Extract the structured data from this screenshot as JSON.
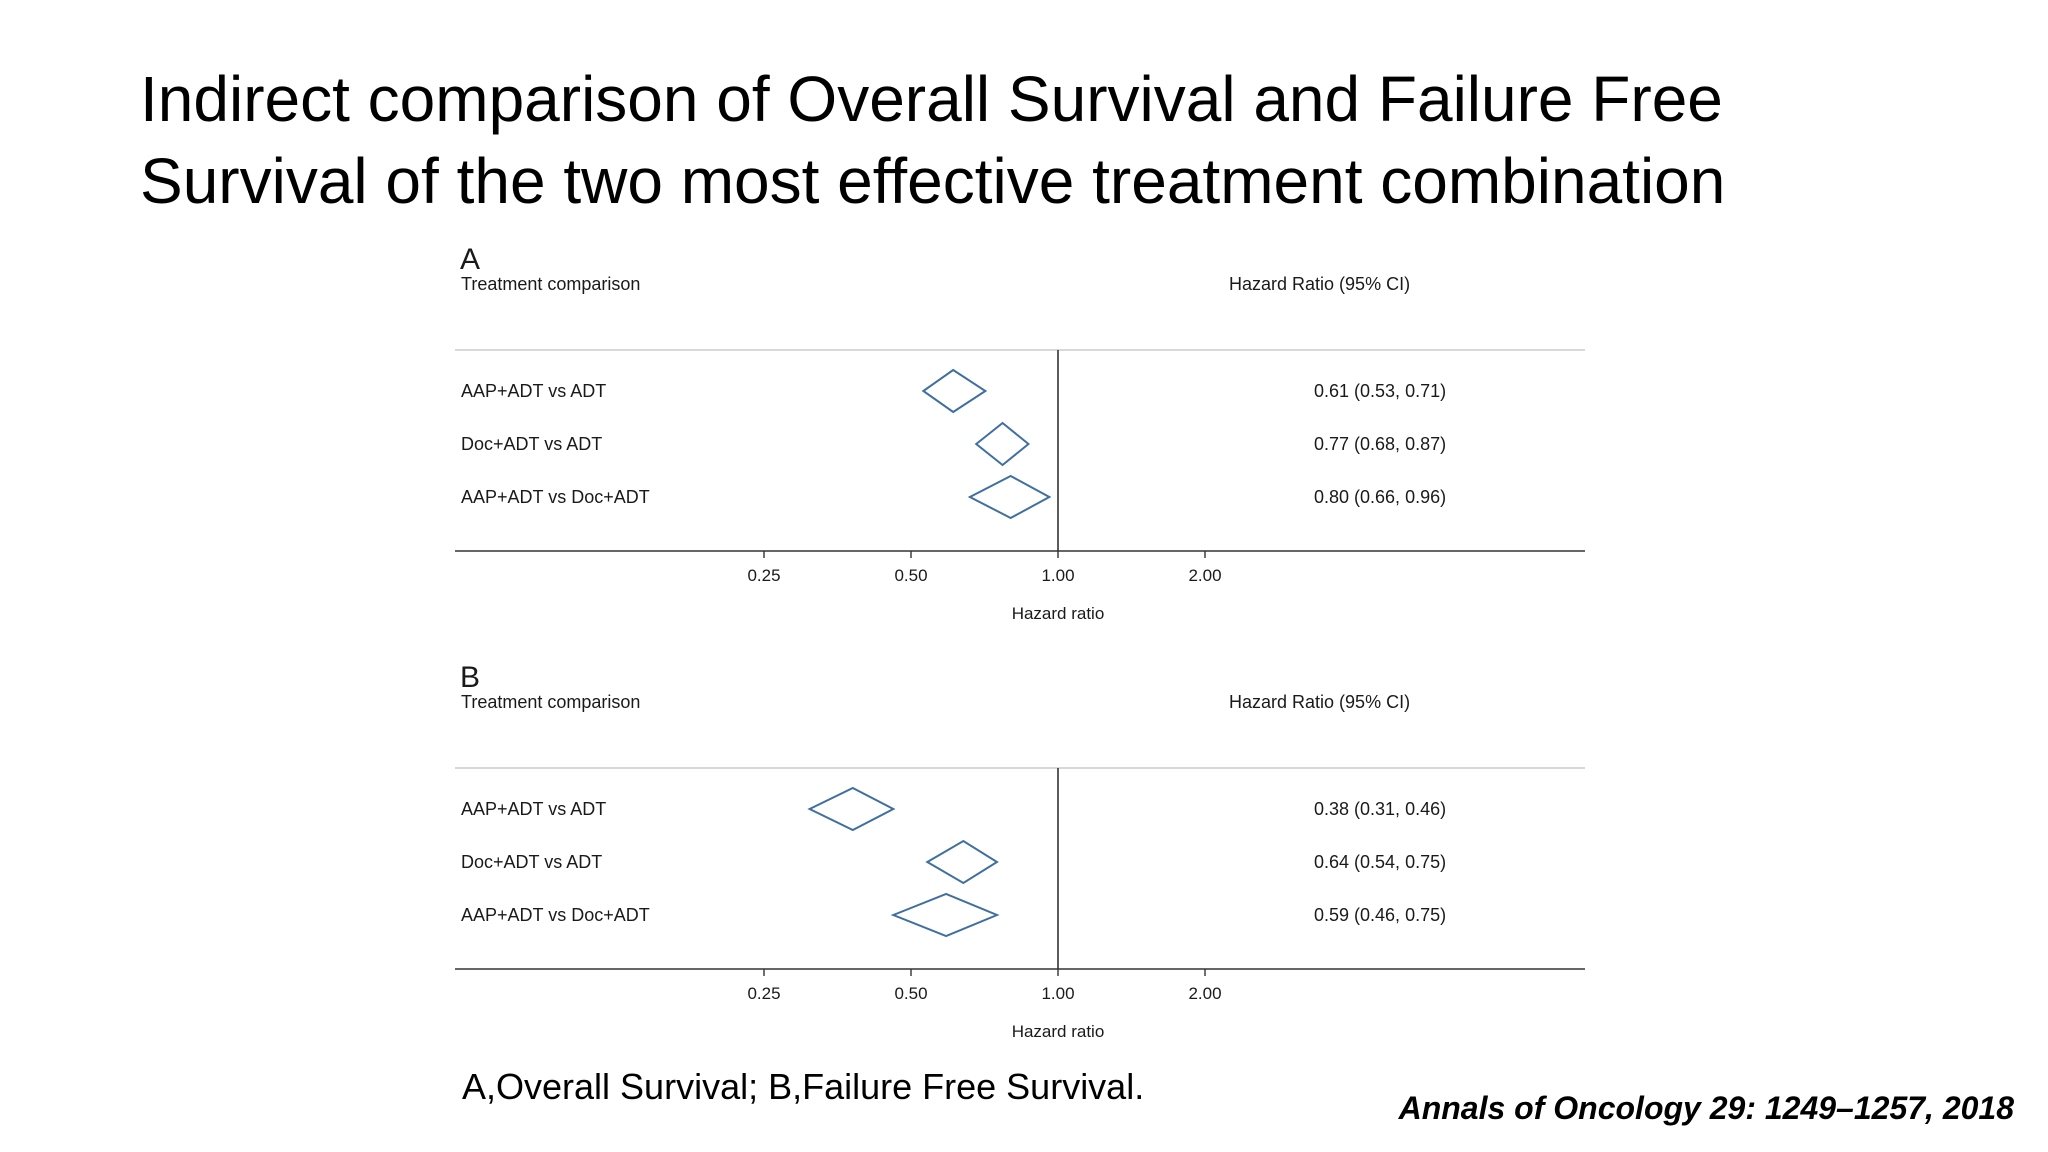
{
  "title": {
    "line1": "Indirect comparison of Overall Survival and Failure Free",
    "line2": "Survival of the two most effective treatment combination"
  },
  "chart_data": [
    {
      "type": "forest",
      "panel": "A",
      "col_header_left": "Treatment comparison",
      "col_header_right": "Hazard Ratio (95% CI)",
      "xlabel": "Hazard ratio",
      "xscale": "log",
      "reference": 1.0,
      "ticks": [
        0.25,
        0.5,
        1.0,
        2.0
      ],
      "tick_labels": [
        "0.25",
        "0.50",
        "1.00",
        "2.00"
      ],
      "rows": [
        {
          "label": "AAP+ADT vs ADT",
          "hr": 0.61,
          "lo": 0.53,
          "hi": 0.71,
          "ci_text": "0.61 (0.53, 0.71)"
        },
        {
          "label": "Doc+ADT vs ADT",
          "hr": 0.77,
          "lo": 0.68,
          "hi": 0.87,
          "ci_text": "0.77 (0.68, 0.87)"
        },
        {
          "label": "AAP+ADT vs Doc+ADT",
          "hr": 0.8,
          "lo": 0.66,
          "hi": 0.96,
          "ci_text": "0.80 (0.66, 0.96)"
        }
      ]
    },
    {
      "type": "forest",
      "panel": "B",
      "col_header_left": "Treatment comparison",
      "col_header_right": "Hazard Ratio (95% CI)",
      "xlabel": "Hazard ratio",
      "xscale": "log",
      "reference": 1.0,
      "ticks": [
        0.25,
        0.5,
        1.0,
        2.0
      ],
      "tick_labels": [
        "0.25",
        "0.50",
        "1.00",
        "2.00"
      ],
      "rows": [
        {
          "label": "AAP+ADT vs ADT",
          "hr": 0.38,
          "lo": 0.31,
          "hi": 0.46,
          "ci_text": "0.38 (0.31, 0.46)"
        },
        {
          "label": "Doc+ADT vs ADT",
          "hr": 0.64,
          "lo": 0.54,
          "hi": 0.75,
          "ci_text": "0.64 (0.54, 0.75)"
        },
        {
          "label": "AAP+ADT vs Doc+ADT",
          "hr": 0.59,
          "lo": 0.46,
          "hi": 0.75,
          "ci_text": "0.59 (0.46, 0.75)"
        }
      ]
    }
  ],
  "caption": "A,Overall Survival; B,Failure Free Survival.",
  "citation": "Annals of Oncology 29: 1249–1257, 2018",
  "colors": {
    "diamond": "#3f6fa0",
    "text": "#1a1a1a",
    "header_rule": "#d8d8d8",
    "axis": "#333333"
  }
}
